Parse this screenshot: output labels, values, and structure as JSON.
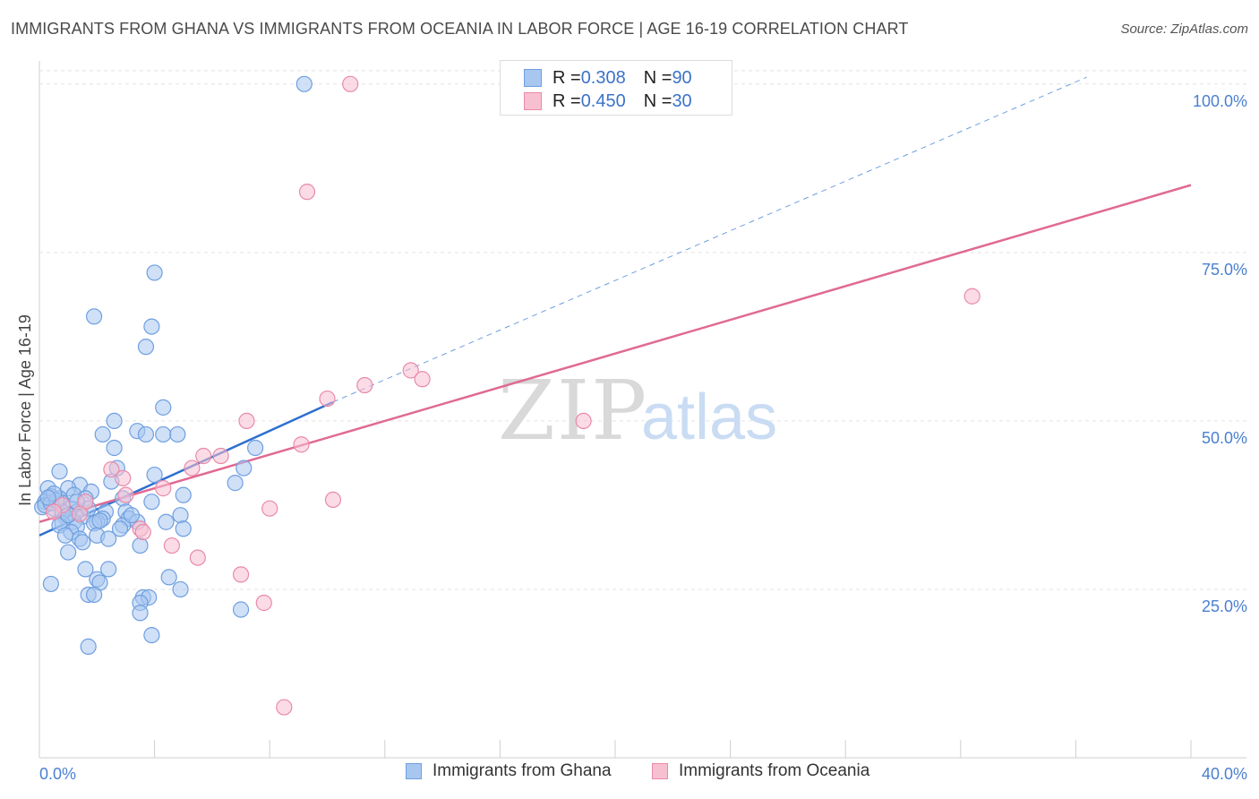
{
  "title": "IMMIGRANTS FROM GHANA VS IMMIGRANTS FROM OCEANIA IN LABOR FORCE | AGE 16-19 CORRELATION CHART",
  "source": "Source: ZipAtlas.com",
  "watermark": {
    "zip": "ZIP",
    "atlas": "atlas"
  },
  "stats": [
    {
      "r_label": "R = ",
      "r_value": "0.308",
      "n_label": "N = ",
      "n_value": "90",
      "color": "#a7c7f0",
      "border": "#6f9fe0"
    },
    {
      "r_label": "R = ",
      "r_value": "0.450",
      "n_label": "N = ",
      "n_value": "30",
      "color": "#f7c0d1",
      "border": "#e98aa8"
    }
  ],
  "legend": [
    {
      "label": "Immigrants from Ghana",
      "color": "#a7c7f0",
      "border": "#6f9fe0"
    },
    {
      "label": "Immigrants from Oceania",
      "color": "#f7c0d1",
      "border": "#e98aa8"
    }
  ],
  "chart_data": {
    "type": "scatter",
    "title": "IMMIGRANTS FROM GHANA VS IMMIGRANTS FROM OCEANIA IN LABOR FORCE | AGE 16-19 CORRELATION CHART",
    "xlabel": "",
    "ylabel": "In Labor Force | Age 16-19",
    "xlim": [
      0,
      40
    ],
    "ylim": [
      0,
      102.5
    ],
    "x_tick_labels": [
      "0.0%",
      "40.0%"
    ],
    "y_ticks": [
      25,
      50,
      75,
      100
    ],
    "y_tick_labels": [
      "25.0%",
      "50.0%",
      "75.0%",
      "100.0%"
    ],
    "grid": true,
    "legend_position": "bottom",
    "series": [
      {
        "name": "Immigrants from Ghana",
        "color": "#6f9fe0",
        "fill": "#a7c7f0",
        "line_color": "#2e6fd0",
        "trend": {
          "x0": 0,
          "y0": 33.0,
          "x1": 10.2,
          "y1": 52.8,
          "dash_to_x": 37,
          "dash_to_y": 105
        },
        "points": [
          [
            9.2,
            100.0
          ],
          [
            4.0,
            72.0
          ],
          [
            1.9,
            65.5
          ],
          [
            3.9,
            64.0
          ],
          [
            3.7,
            61.0
          ],
          [
            4.3,
            52.0
          ],
          [
            2.6,
            50.0
          ],
          [
            3.4,
            48.5
          ],
          [
            3.7,
            48.0
          ],
          [
            4.3,
            48.0
          ],
          [
            4.8,
            48.0
          ],
          [
            2.2,
            48.0
          ],
          [
            7.5,
            46.0
          ],
          [
            2.6,
            46.0
          ],
          [
            7.1,
            43.0
          ],
          [
            2.7,
            43.0
          ],
          [
            0.7,
            42.5
          ],
          [
            4.0,
            42.0
          ],
          [
            2.5,
            41.0
          ],
          [
            6.8,
            40.8
          ],
          [
            1.4,
            40.5
          ],
          [
            0.3,
            40.0
          ],
          [
            1.0,
            40.0
          ],
          [
            1.8,
            39.5
          ],
          [
            1.2,
            39.0
          ],
          [
            0.7,
            38.5
          ],
          [
            5.0,
            39.0
          ],
          [
            0.4,
            38.8
          ],
          [
            1.6,
            38.5
          ],
          [
            2.9,
            38.5
          ],
          [
            0.2,
            38.0
          ],
          [
            3.9,
            38.0
          ],
          [
            0.8,
            37.8
          ],
          [
            1.1,
            37.0
          ],
          [
            0.5,
            37.0
          ],
          [
            0.1,
            37.2
          ],
          [
            0.8,
            36.5
          ],
          [
            1.3,
            36.5
          ],
          [
            2.3,
            36.5
          ],
          [
            3.0,
            36.5
          ],
          [
            0.9,
            35.8
          ],
          [
            1.5,
            35.8
          ],
          [
            2.2,
            35.5
          ],
          [
            3.1,
            35.5
          ],
          [
            4.9,
            36.0
          ],
          [
            1.2,
            35.0
          ],
          [
            0.8,
            34.8
          ],
          [
            2.0,
            35.0
          ],
          [
            3.4,
            35.0
          ],
          [
            4.4,
            35.0
          ],
          [
            1.9,
            34.8
          ],
          [
            2.9,
            34.5
          ],
          [
            0.7,
            34.5
          ],
          [
            1.3,
            34.3
          ],
          [
            5.0,
            34.0
          ],
          [
            1.1,
            33.5
          ],
          [
            0.9,
            33.0
          ],
          [
            2.0,
            33.0
          ],
          [
            1.4,
            32.5
          ],
          [
            2.4,
            32.5
          ],
          [
            1.5,
            32.0
          ],
          [
            3.5,
            31.5
          ],
          [
            1.0,
            30.5
          ],
          [
            1.6,
            28.0
          ],
          [
            2.4,
            28.0
          ],
          [
            2.0,
            26.5
          ],
          [
            4.5,
            26.8
          ],
          [
            2.1,
            26.0
          ],
          [
            0.4,
            25.8
          ],
          [
            4.9,
            25.0
          ],
          [
            1.7,
            24.2
          ],
          [
            1.9,
            24.2
          ],
          [
            3.6,
            23.8
          ],
          [
            3.8,
            23.8
          ],
          [
            3.5,
            23.0
          ],
          [
            7.0,
            22.0
          ],
          [
            3.5,
            21.5
          ],
          [
            3.9,
            18.2
          ],
          [
            1.7,
            16.5
          ],
          [
            0.2,
            37.5
          ],
          [
            0.4,
            37.8
          ],
          [
            0.6,
            38.2
          ],
          [
            0.5,
            39.2
          ],
          [
            1.0,
            36.0
          ],
          [
            1.7,
            37.0
          ],
          [
            2.1,
            35.2
          ],
          [
            2.8,
            34.0
          ],
          [
            3.2,
            36.0
          ],
          [
            1.3,
            38.0
          ],
          [
            0.3,
            38.6
          ]
        ]
      },
      {
        "name": "Immigrants from Oceania",
        "color": "#e98aa8",
        "fill": "#f7c0d1",
        "line_color": "#e06a93",
        "trend": {
          "x0": 0,
          "y0": 35.0,
          "x1": 40,
          "y1": 85.0
        },
        "points": [
          [
            10.8,
            100.0
          ],
          [
            9.3,
            84.0
          ],
          [
            32.4,
            68.5
          ],
          [
            12.9,
            57.5
          ],
          [
            13.3,
            56.2
          ],
          [
            11.3,
            55.3
          ],
          [
            10.0,
            53.3
          ],
          [
            7.2,
            50.0
          ],
          [
            18.9,
            50.0
          ],
          [
            9.1,
            46.5
          ],
          [
            5.7,
            44.8
          ],
          [
            6.3,
            44.8
          ],
          [
            5.3,
            43.0
          ],
          [
            2.5,
            42.8
          ],
          [
            2.9,
            41.5
          ],
          [
            4.3,
            40.0
          ],
          [
            3.0,
            39.0
          ],
          [
            1.6,
            38.0
          ],
          [
            10.2,
            38.3
          ],
          [
            0.8,
            37.5
          ],
          [
            0.5,
            36.5
          ],
          [
            8.0,
            37.0
          ],
          [
            3.5,
            34.0
          ],
          [
            3.6,
            33.5
          ],
          [
            4.6,
            31.5
          ],
          [
            5.5,
            29.7
          ],
          [
            7.0,
            27.2
          ],
          [
            7.8,
            23.0
          ],
          [
            8.5,
            7.5
          ],
          [
            1.4,
            36.2
          ]
        ]
      }
    ]
  }
}
